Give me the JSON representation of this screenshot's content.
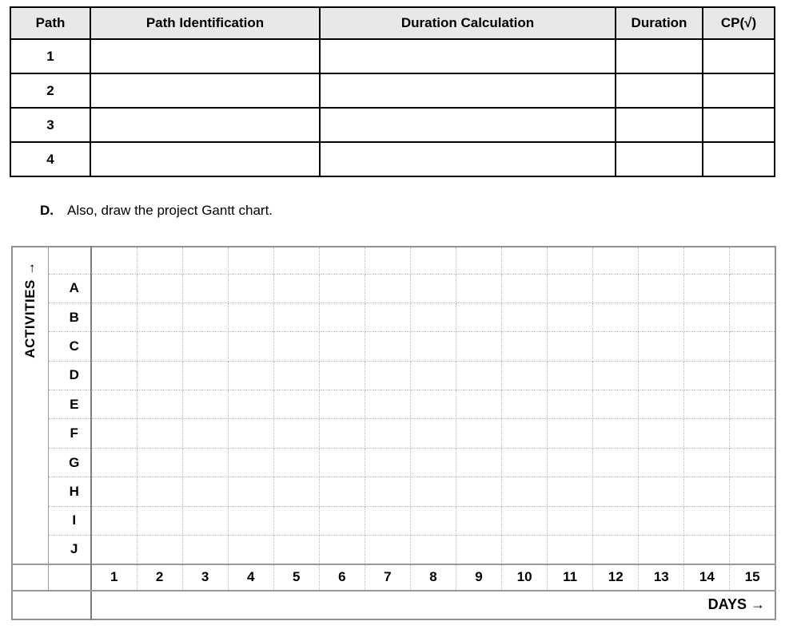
{
  "path_table": {
    "headers": [
      "Path",
      "Path Identification",
      "Duration Calculation",
      "Duration",
      "CP(√)"
    ],
    "rows": [
      {
        "path": "1",
        "identification": "",
        "calculation": "",
        "duration": "",
        "cp": ""
      },
      {
        "path": "2",
        "identification": "",
        "calculation": "",
        "duration": "",
        "cp": ""
      },
      {
        "path": "3",
        "identification": "",
        "calculation": "",
        "duration": "",
        "cp": ""
      },
      {
        "path": "4",
        "identification": "",
        "calculation": "",
        "duration": "",
        "cp": ""
      }
    ]
  },
  "caption": {
    "label": "D.",
    "text": "Also, draw the project Gantt chart."
  },
  "gantt": {
    "y_axis_label": "ACTIVITIES →",
    "x_axis_label": "DAYS →",
    "activities": [
      "A",
      "B",
      "C",
      "D",
      "E",
      "F",
      "G",
      "H",
      "I",
      "J"
    ],
    "days": [
      "1",
      "2",
      "3",
      "4",
      "5",
      "6",
      "7",
      "8",
      "9",
      "10",
      "11",
      "12",
      "13",
      "14",
      "15"
    ]
  },
  "colors": {
    "header_bg": "#e8e8e8",
    "table_border": "#000000",
    "gantt_border": "#919191",
    "gantt_grid_dotted": "#b8b8b8",
    "text": "#000000"
  }
}
